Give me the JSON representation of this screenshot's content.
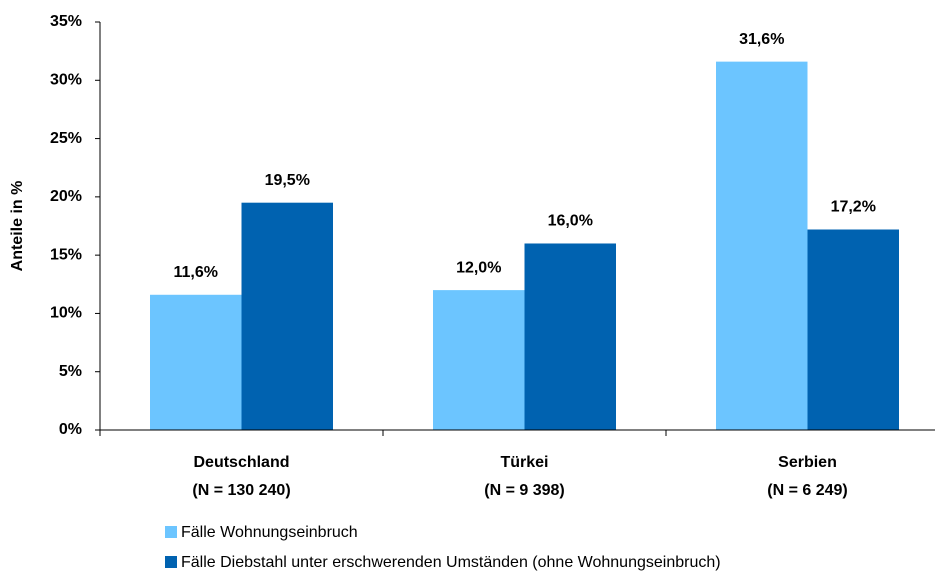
{
  "chart_data": {
    "type": "bar",
    "y_label": "Anteile in %",
    "categories": [
      [
        "Deutschland",
        "(N = 130 240)"
      ],
      [
        "Türkei",
        "(N = 9 398)"
      ],
      [
        "Serbien",
        "(N = 6 249)"
      ]
    ],
    "series": [
      {
        "name": "Fälle Wohnungseinbruch",
        "color": "#6cc5ff",
        "values": [
          11.6,
          12.0,
          31.6
        ],
        "value_labels": [
          "11,6%",
          "12,0%",
          "31,6%"
        ]
      },
      {
        "name": "Fälle Diebstahl unter erschwerenden Umständen (ohne Wohnungseinbruch)",
        "color": "#0062b0",
        "values": [
          19.5,
          16.0,
          17.2
        ],
        "value_labels": [
          "19,5%",
          "16,0%",
          "17,2%"
        ]
      }
    ],
    "ylim": [
      0,
      35
    ],
    "yticks": [
      {
        "value": 0,
        "label": "0%"
      },
      {
        "value": 5,
        "label": "5%"
      },
      {
        "value": 10,
        "label": "10%"
      },
      {
        "value": 15,
        "label": "15%"
      },
      {
        "value": 20,
        "label": "20%"
      },
      {
        "value": 25,
        "label": "25%"
      },
      {
        "value": 30,
        "label": "30%"
      },
      {
        "value": 35,
        "label": "35%"
      }
    ],
    "legend": "bottom"
  }
}
